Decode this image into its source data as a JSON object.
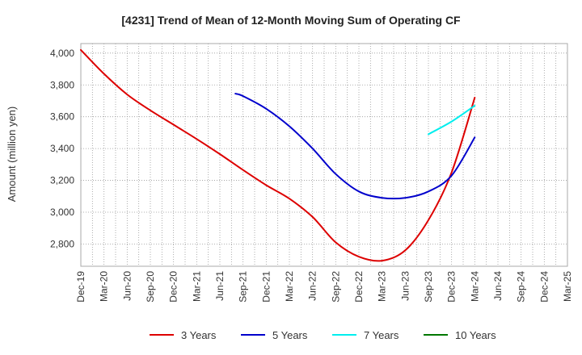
{
  "chart_data": {
    "type": "line",
    "title": "[4231]  Trend of Mean of 12-Month Moving Sum of Operating CF",
    "xlabel": "",
    "ylabel": "Amount (million yen)",
    "ylim": [
      2660,
      4060
    ],
    "yticks": [
      2800,
      3000,
      3200,
      3400,
      3600,
      3800,
      4000
    ],
    "ytick_labels": [
      "2,800",
      "3,000",
      "3,200",
      "3,400",
      "3,600",
      "3,800",
      "4,000"
    ],
    "categories": [
      "Dec-19",
      "Mar-20",
      "Jun-20",
      "Sep-20",
      "Dec-20",
      "Mar-21",
      "Jun-21",
      "Sep-21",
      "Dec-21",
      "Mar-22",
      "Jun-22",
      "Sep-22",
      "Dec-22",
      "Mar-23",
      "Jun-23",
      "Sep-23",
      "Dec-23",
      "Mar-24",
      "Jun-24",
      "Sep-24",
      "Dec-24",
      "Mar-25"
    ],
    "grid": true,
    "legend_position": "bottom",
    "series": [
      {
        "name": "3 Years",
        "color": "#dd0000",
        "points": [
          [
            0,
            4020
          ],
          [
            1,
            3870
          ],
          [
            2,
            3740
          ],
          [
            3,
            3640
          ],
          [
            4,
            3550
          ],
          [
            5,
            3460
          ],
          [
            6,
            3365
          ],
          [
            7,
            3265
          ],
          [
            8,
            3170
          ],
          [
            9,
            3085
          ],
          [
            10,
            2970
          ],
          [
            11,
            2810
          ],
          [
            12,
            2720
          ],
          [
            13,
            2695
          ],
          [
            14,
            2760
          ],
          [
            15,
            2950
          ],
          [
            16,
            3250
          ],
          [
            17,
            3720
          ]
        ]
      },
      {
        "name": "5 Years",
        "color": "#0000cc",
        "points": [
          [
            6.67,
            3745
          ],
          [
            7,
            3730
          ],
          [
            8,
            3650
          ],
          [
            9,
            3540
          ],
          [
            10,
            3400
          ],
          [
            11,
            3240
          ],
          [
            12,
            3130
          ],
          [
            13,
            3090
          ],
          [
            14,
            3090
          ],
          [
            15,
            3130
          ],
          [
            16,
            3230
          ],
          [
            17,
            3470
          ]
        ]
      },
      {
        "name": "7 Years",
        "color": "#00eeee",
        "points": [
          [
            15,
            3490
          ],
          [
            16,
            3570
          ],
          [
            17,
            3670
          ]
        ]
      },
      {
        "name": "10 Years",
        "color": "#007700",
        "points": []
      }
    ]
  }
}
